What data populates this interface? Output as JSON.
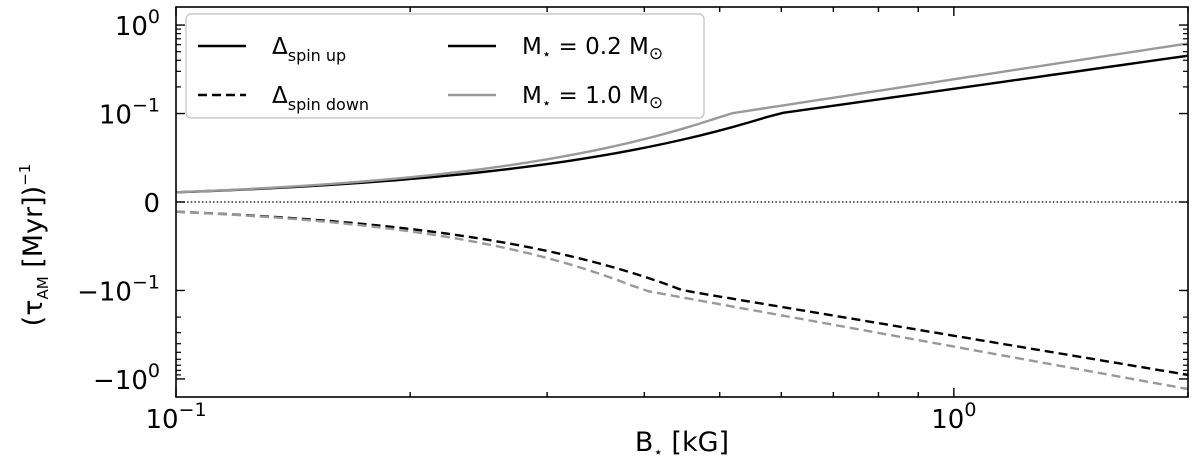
{
  "chart_data": {
    "type": "line",
    "xlabel": "B⋆ [kG]",
    "ylabel": "(τAM [Myr])−1",
    "x_scale": "log",
    "y_scale": "symlog",
    "xlim": [
      0.1,
      2.0
    ],
    "ylim": [
      -1.6,
      1.6
    ],
    "x_ticks": [
      {
        "value": 0.1,
        "label": "10−1"
      },
      {
        "value": 1.0,
        "label": "100"
      }
    ],
    "y_ticks": [
      {
        "value": 1.0,
        "label": "100"
      },
      {
        "value": 0.1,
        "label": "10−1"
      },
      {
        "value": 0,
        "label": "0"
      },
      {
        "value": -0.1,
        "label": "−10−1"
      },
      {
        "value": -1.0,
        "label": "−100"
      }
    ],
    "reference_line": {
      "y": 0,
      "style": "dotted"
    },
    "legend": {
      "placement": "top-left",
      "linestyle_entries": [
        {
          "label": "Δspin up",
          "style": "solid"
        },
        {
          "label": "Δspin down",
          "style": "dashed"
        }
      ],
      "color_entries": [
        {
          "label": "M⋆ = 0.2 M⊙",
          "color": "#000000"
        },
        {
          "label": "M⋆ = 1.0 M⊙",
          "color": "#999999"
        }
      ]
    },
    "series": [
      {
        "name": "Δspin up, M⋆ = 0.2 M⊙",
        "color": "#000000",
        "style": "solid",
        "x": [
          0.1,
          2.0
        ],
        "y": [
          0.011,
          0.45
        ]
      },
      {
        "name": "Δspin up, M⋆ = 1.0 M⊙",
        "color": "#999999",
        "style": "solid",
        "x": [
          0.1,
          2.0
        ],
        "y": [
          0.011,
          0.62
        ]
      },
      {
        "name": "Δspin down, M⋆ = 0.2 M⊙",
        "color": "#000000",
        "style": "dashed",
        "x": [
          0.1,
          2.0
        ],
        "y": [
          -0.011,
          -0.9
        ]
      },
      {
        "name": "Δspin down, M⋆ = 1.0 M⊙",
        "color": "#999999",
        "style": "dashed",
        "x": [
          0.1,
          2.0
        ],
        "y": [
          -0.011,
          -1.3
        ]
      }
    ]
  }
}
